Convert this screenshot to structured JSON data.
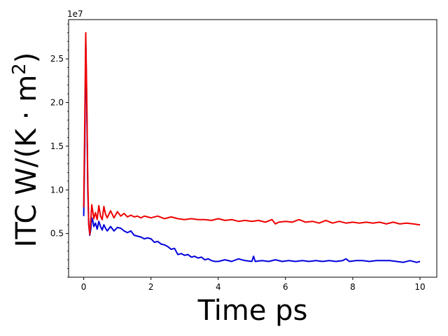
{
  "chart_data": {
    "type": "line",
    "xlabel": "Time ps",
    "ylabel_main": "ITC W/(K · m",
    "ylabel_sup": "2",
    "ylabel_close": ")",
    "offset_text": "1e7",
    "xlim": [
      -0.45,
      10.5
    ],
    "ylim": [
      0.0,
      29.5
    ],
    "x_ticks": [
      0,
      2,
      4,
      6,
      8,
      10
    ],
    "x_tick_labels": [
      "0",
      "2",
      "4",
      "6",
      "8",
      "10"
    ],
    "y_ticks": [
      5,
      10,
      15,
      20,
      25
    ],
    "y_tick_labels": [
      "0.5",
      "1.0",
      "1.5",
      "2.0",
      "2.5"
    ],
    "y_minor_step": 1,
    "grid": false,
    "series": [
      {
        "color": "#0000dd",
        "x": [
          0.0,
          0.03,
          0.06,
          0.09,
          0.12,
          0.15,
          0.18,
          0.21,
          0.24,
          0.27,
          0.3,
          0.35,
          0.4,
          0.45,
          0.5,
          0.55,
          0.6,
          0.65,
          0.7,
          0.8,
          0.9,
          1.0,
          1.1,
          1.2,
          1.3,
          1.4,
          1.5,
          1.6,
          1.7,
          1.8,
          1.9,
          2.0,
          2.1,
          2.2,
          2.3,
          2.4,
          2.5,
          2.6,
          2.7,
          2.8,
          2.9,
          3.0,
          3.1,
          3.2,
          3.3,
          3.4,
          3.5,
          3.6,
          3.7,
          3.8,
          3.9,
          4.0,
          4.2,
          4.4,
          4.6,
          4.8,
          5.0,
          5.05,
          5.1,
          5.3,
          5.5,
          5.7,
          5.9,
          6.1,
          6.3,
          6.5,
          6.7,
          6.9,
          7.1,
          7.3,
          7.5,
          7.7,
          7.8,
          7.9,
          8.1,
          8.3,
          8.5,
          8.7,
          8.9,
          9.1,
          9.3,
          9.5,
          9.7,
          9.9,
          10.0
        ],
        "y": [
          7.0,
          15.0,
          27.0,
          20.0,
          10.0,
          6.0,
          4.8,
          5.5,
          6.8,
          6.5,
          5.8,
          6.2,
          5.5,
          6.4,
          5.8,
          5.4,
          6.0,
          5.6,
          5.3,
          5.8,
          5.3,
          5.7,
          5.6,
          5.3,
          5.1,
          5.3,
          4.8,
          4.7,
          4.6,
          4.4,
          4.5,
          4.4,
          4.0,
          4.1,
          3.8,
          3.7,
          3.5,
          3.2,
          3.3,
          2.6,
          2.7,
          2.5,
          2.6,
          2.3,
          2.4,
          2.2,
          2.3,
          2.0,
          2.1,
          1.9,
          1.8,
          1.8,
          2.0,
          1.8,
          2.1,
          1.9,
          1.8,
          2.4,
          1.8,
          1.9,
          1.8,
          2.0,
          1.8,
          1.9,
          1.8,
          1.9,
          1.8,
          1.9,
          1.8,
          1.9,
          1.8,
          1.9,
          2.1,
          1.8,
          1.9,
          1.9,
          1.8,
          1.9,
          1.9,
          1.9,
          1.8,
          1.7,
          1.9,
          1.7,
          1.8
        ]
      },
      {
        "color": "#ee0000",
        "x": [
          0.0,
          0.03,
          0.06,
          0.09,
          0.12,
          0.15,
          0.18,
          0.21,
          0.24,
          0.27,
          0.3,
          0.35,
          0.4,
          0.45,
          0.5,
          0.55,
          0.6,
          0.65,
          0.7,
          0.8,
          0.9,
          1.0,
          1.1,
          1.2,
          1.3,
          1.4,
          1.5,
          1.6,
          1.7,
          1.8,
          1.9,
          2.0,
          2.2,
          2.4,
          2.6,
          2.8,
          3.0,
          3.2,
          3.4,
          3.6,
          3.8,
          4.0,
          4.2,
          4.4,
          4.6,
          4.8,
          5.0,
          5.2,
          5.4,
          5.6,
          5.7,
          5.8,
          6.0,
          6.2,
          6.4,
          6.6,
          6.8,
          7.0,
          7.2,
          7.4,
          7.6,
          7.8,
          8.0,
          8.2,
          8.4,
          8.6,
          8.8,
          9.0,
          9.2,
          9.4,
          9.6,
          9.8,
          10.0
        ],
        "y": [
          8.0,
          18.0,
          28.0,
          21.0,
          11.0,
          6.0,
          4.9,
          6.5,
          8.3,
          7.5,
          6.7,
          7.4,
          6.6,
          8.2,
          7.0,
          6.6,
          8.1,
          7.2,
          6.8,
          7.6,
          6.8,
          7.5,
          7.0,
          7.3,
          6.9,
          7.1,
          6.9,
          7.0,
          6.8,
          7.0,
          6.9,
          6.8,
          7.0,
          6.7,
          6.9,
          6.7,
          6.6,
          6.7,
          6.6,
          6.6,
          6.5,
          6.7,
          6.5,
          6.6,
          6.4,
          6.5,
          6.4,
          6.5,
          6.3,
          6.6,
          6.1,
          6.3,
          6.4,
          6.3,
          6.6,
          6.3,
          6.4,
          6.2,
          6.5,
          6.2,
          6.4,
          6.2,
          6.3,
          6.2,
          6.3,
          6.2,
          6.3,
          6.1,
          6.3,
          6.1,
          6.2,
          6.1,
          6.0
        ]
      }
    ]
  }
}
